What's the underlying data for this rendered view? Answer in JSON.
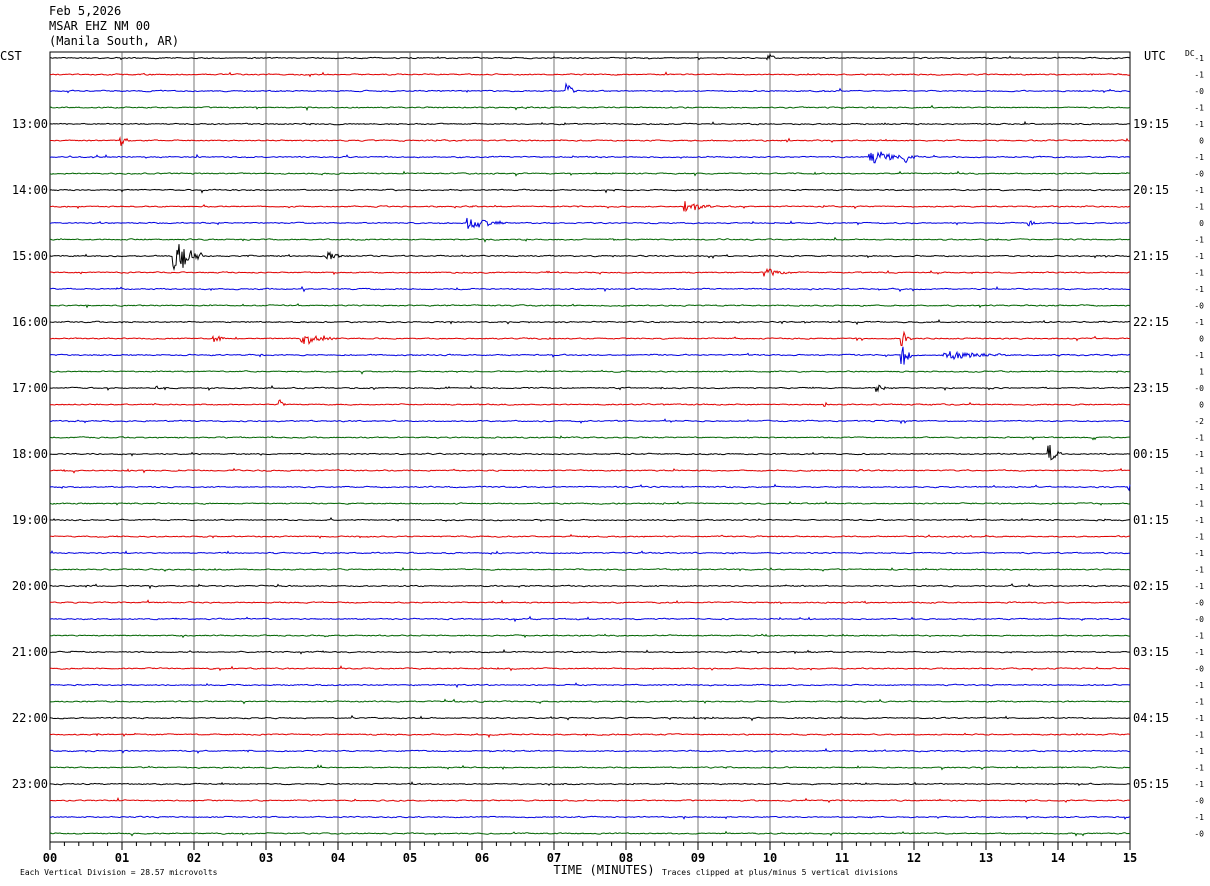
{
  "header": {
    "date": "Feb 5,2026",
    "station": "MSAR EHZ NM 00",
    "location": "(Manila South, AR)"
  },
  "chart_data": {
    "type": "line",
    "title": "",
    "left_axis_label": "CST",
    "right_axis_label": "UTC",
    "dc_header": "DC",
    "xlabel": "TIME (MINUTES)",
    "xlim": [
      0,
      15
    ],
    "x_ticks": [
      "00",
      "01",
      "02",
      "03",
      "04",
      "05",
      "06",
      "07",
      "08",
      "09",
      "10",
      "11",
      "12",
      "13",
      "14",
      "15"
    ],
    "grid": true,
    "trace_colors": [
      "#000000",
      "#e00000",
      "#0000e0",
      "#006400"
    ],
    "num_traces": 48,
    "left_hour_labels": [
      {
        "row": 4,
        "text": "13:00"
      },
      {
        "row": 8,
        "text": "14:00"
      },
      {
        "row": 12,
        "text": "15:00"
      },
      {
        "row": 16,
        "text": "16:00"
      },
      {
        "row": 20,
        "text": "17:00"
      },
      {
        "row": 24,
        "text": "18:00"
      },
      {
        "row": 28,
        "text": "19:00"
      },
      {
        "row": 32,
        "text": "20:00"
      },
      {
        "row": 36,
        "text": "21:00"
      },
      {
        "row": 40,
        "text": "22:00"
      },
      {
        "row": 44,
        "text": "23:00"
      }
    ],
    "right_hour_labels": [
      {
        "row": 4,
        "text": "19:15"
      },
      {
        "row": 8,
        "text": "20:15"
      },
      {
        "row": 12,
        "text": "21:15"
      },
      {
        "row": 16,
        "text": "22:15"
      },
      {
        "row": 20,
        "text": "23:15"
      },
      {
        "row": 24,
        "text": "00:15"
      },
      {
        "row": 28,
        "text": "01:15"
      },
      {
        "row": 32,
        "text": "02:15"
      },
      {
        "row": 36,
        "text": "03:15"
      },
      {
        "row": 40,
        "text": "04:15"
      },
      {
        "row": 44,
        "text": "05:15"
      }
    ],
    "dc_offsets": [
      "-1",
      "-1",
      "-0",
      "-1",
      "-1",
      "0",
      "-1",
      "-0",
      "-1",
      "-1",
      "0",
      "-1",
      "-1",
      "-1",
      "-1",
      "-0",
      "-1",
      "0",
      "-1",
      "1",
      "-0",
      "0",
      "-2",
      "-1",
      "-1",
      "-1",
      "-1",
      "-1",
      "-1",
      "-1",
      "-1",
      "-1",
      "-1",
      "-0",
      "-0",
      "-1",
      "-1",
      "-0",
      "-1",
      "-1",
      "-1",
      "-1",
      "-1",
      "-1",
      "-1",
      "-0",
      "-1",
      "-0"
    ],
    "events": [
      {
        "trace": 0,
        "minute": 10.0,
        "amplitude": 4,
        "duration": 0.15
      },
      {
        "trace": 2,
        "minute": 7.2,
        "amplitude": 8,
        "duration": 0.12
      },
      {
        "trace": 5,
        "minute": 1.0,
        "amplitude": 5,
        "duration": 0.12
      },
      {
        "trace": 6,
        "minute": 11.5,
        "amplitude": 6,
        "duration": 0.5
      },
      {
        "trace": 6,
        "minute": 11.9,
        "amplitude": 6,
        "duration": 0.2
      },
      {
        "trace": 9,
        "minute": 8.9,
        "amplitude": 6,
        "duration": 0.35
      },
      {
        "trace": 10,
        "minute": 5.9,
        "amplitude": 7,
        "duration": 0.45
      },
      {
        "trace": 10,
        "minute": 13.6,
        "amplitude": 5,
        "duration": 0.1
      },
      {
        "trace": 12,
        "minute": 1.8,
        "amplitude": 16,
        "duration": 0.35
      },
      {
        "trace": 12,
        "minute": 3.9,
        "amplitude": 4,
        "duration": 0.3
      },
      {
        "trace": 13,
        "minute": 10.0,
        "amplitude": 4,
        "duration": 0.3
      },
      {
        "trace": 17,
        "minute": 2.3,
        "amplitude": 5,
        "duration": 0.15
      },
      {
        "trace": 17,
        "minute": 3.6,
        "amplitude": 8,
        "duration": 0.4
      },
      {
        "trace": 17,
        "minute": 11.85,
        "amplitude": 8,
        "duration": 0.12
      },
      {
        "trace": 18,
        "minute": 11.85,
        "amplitude": 14,
        "duration": 0.12
      },
      {
        "trace": 18,
        "minute": 12.6,
        "amplitude": 4,
        "duration": 0.7
      },
      {
        "trace": 20,
        "minute": 11.5,
        "amplitude": 5,
        "duration": 0.15
      },
      {
        "trace": 21,
        "minute": 3.2,
        "amplitude": 5,
        "duration": 0.1
      },
      {
        "trace": 24,
        "minute": 13.9,
        "amplitude": 12,
        "duration": 0.15
      },
      {
        "trace": 26,
        "minute": 15.0,
        "amplitude": 4,
        "duration": 0.1
      }
    ],
    "footer_left": "Each Vertical Division =   28.57 microvolts",
    "footer_right": "Traces clipped at plus/minus 5 vertical divisions"
  }
}
